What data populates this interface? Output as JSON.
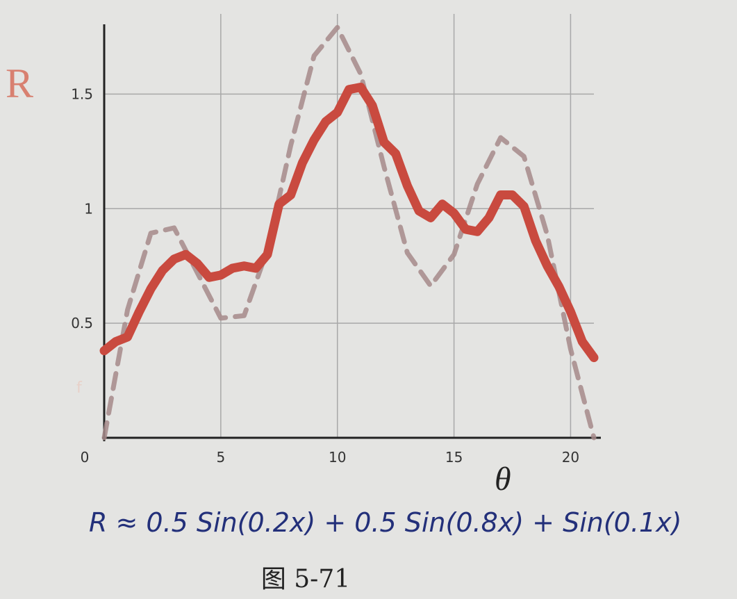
{
  "chart_data": {
    "type": "line",
    "y_label": "R",
    "x_label": "θ",
    "annotation": "f",
    "formula": "R ≈ 0.5 Sin(0.2x) + 0.5 Sin(0.8x) + Sin(0.1x)",
    "caption": "图 5-71",
    "xlim": [
      0,
      21
    ],
    "ylim": [
      0,
      1.85
    ],
    "xticks": [
      0,
      5,
      10,
      15,
      20
    ],
    "yticks": [
      0.5,
      1,
      1.5
    ],
    "grid": true,
    "series": [
      {
        "color": "#c94a3f",
        "style": "solid",
        "x": [
          0,
          0.5,
          1,
          1.5,
          2,
          2.5,
          3,
          3.5,
          4,
          4.5,
          5,
          5.5,
          6,
          6.5,
          7,
          7.5,
          8,
          8.5,
          9,
          9.5,
          10,
          10.5,
          11,
          11.5,
          12,
          12.5,
          13,
          13.5,
          14,
          14.5,
          15,
          15.5,
          16,
          16.5,
          17,
          17.5,
          18,
          18.5,
          19,
          19.5,
          20,
          20.5,
          21
        ],
        "values": [
          0.38,
          0.42,
          0.44,
          0.55,
          0.65,
          0.73,
          0.78,
          0.8,
          0.76,
          0.7,
          0.71,
          0.74,
          0.75,
          0.74,
          0.8,
          1.02,
          1.06,
          1.2,
          1.3,
          1.38,
          1.42,
          1.52,
          1.53,
          1.45,
          1.29,
          1.24,
          1.1,
          0.99,
          0.96,
          1.02,
          0.98,
          0.91,
          0.9,
          0.96,
          1.06,
          1.06,
          1.01,
          0.86,
          0.75,
          0.66,
          0.55,
          0.42,
          0.35
        ]
      },
      {
        "color": "#a68a8a",
        "style": "dashed",
        "x": [
          0,
          1,
          2,
          3,
          4,
          5,
          6,
          7,
          8,
          9,
          10,
          11,
          12,
          13,
          14,
          15,
          16,
          17,
          18,
          19,
          20,
          21
        ],
        "values": [
          0,
          0.558,
          0.893,
          0.916,
          0.719,
          0.522,
          0.533,
          0.821,
          1.276,
          1.667,
          1.791,
          1.588,
          1.183,
          0.807,
          0.663,
          0.8,
          1.107,
          1.31,
          1.228,
          0.885,
          0.387,
          0
        ]
      }
    ]
  }
}
